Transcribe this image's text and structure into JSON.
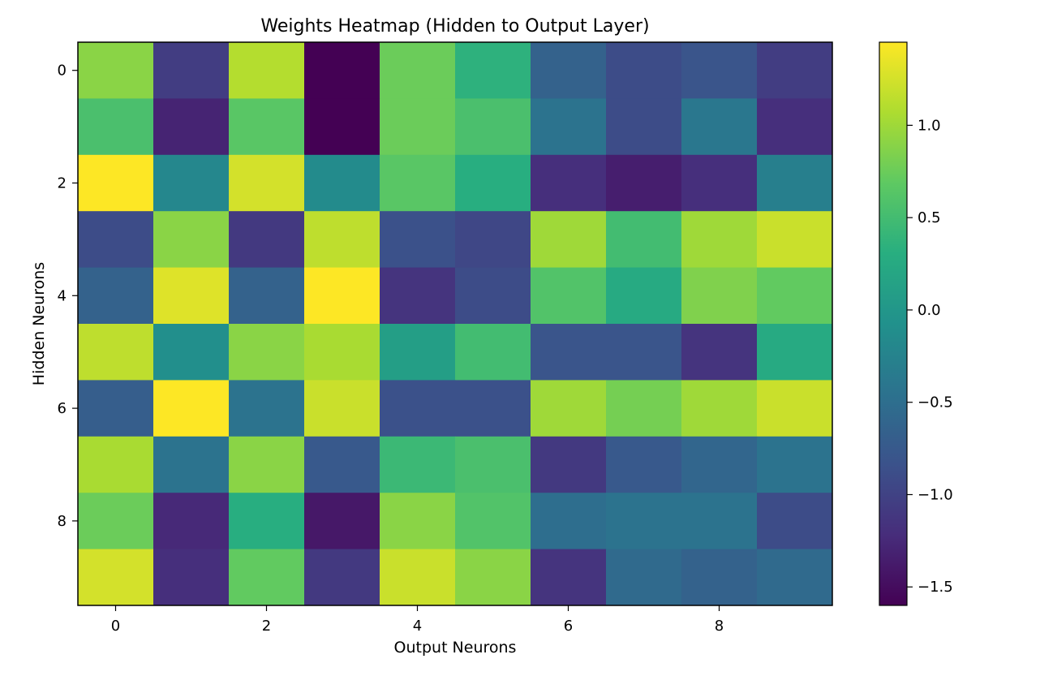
{
  "chart_data": {
    "type": "heatmap",
    "title": "Weights Heatmap (Hidden to Output Layer)",
    "xlabel": "Output Neurons",
    "ylabel": "Hidden Neurons",
    "x_ticks": [
      0,
      2,
      4,
      6,
      8
    ],
    "y_ticks": [
      0,
      2,
      4,
      6,
      8
    ],
    "colormap": "viridis",
    "colorbar": {
      "vmin": -1.6,
      "vmax": 1.45,
      "ticks": [
        -1.5,
        -1.0,
        -0.5,
        0.0,
        0.5,
        1.0
      ],
      "tick_labels": [
        "−1.5",
        "−1.0",
        "−0.5",
        "0.0",
        "0.5",
        "1.0"
      ]
    },
    "rows": 10,
    "cols": 10,
    "values": [
      [
        0.9,
        -1.05,
        1.1,
        -1.6,
        0.75,
        0.35,
        -0.65,
        -0.9,
        -0.8,
        -1.05
      ],
      [
        0.55,
        -1.3,
        0.65,
        -1.6,
        0.75,
        0.55,
        -0.45,
        -0.9,
        -0.4,
        -1.2
      ],
      [
        1.45,
        -0.2,
        1.25,
        -0.15,
        0.65,
        0.3,
        -1.2,
        -1.35,
        -1.2,
        -0.3
      ],
      [
        -0.9,
        0.9,
        -1.1,
        1.15,
        -0.85,
        -0.95,
        1.0,
        0.5,
        1.0,
        1.2
      ],
      [
        -0.65,
        1.3,
        -0.65,
        1.45,
        -1.15,
        -0.9,
        0.6,
        0.25,
        0.85,
        0.7
      ],
      [
        1.15,
        -0.1,
        0.9,
        1.05,
        0.1,
        0.5,
        -0.8,
        -0.8,
        -1.15,
        0.25
      ],
      [
        -0.7,
        1.45,
        -0.45,
        1.2,
        -0.85,
        -0.85,
        1.0,
        0.8,
        1.0,
        1.2
      ],
      [
        1.05,
        -0.45,
        0.9,
        -0.75,
        0.45,
        0.55,
        -1.1,
        -0.75,
        -0.6,
        -0.45
      ],
      [
        0.75,
        -1.25,
        0.3,
        -1.4,
        0.9,
        0.6,
        -0.5,
        -0.45,
        -0.45,
        -0.9
      ],
      [
        1.25,
        -1.2,
        0.7,
        -1.1,
        1.2,
        0.9,
        -1.15,
        -0.55,
        -0.65,
        -0.55
      ]
    ]
  }
}
